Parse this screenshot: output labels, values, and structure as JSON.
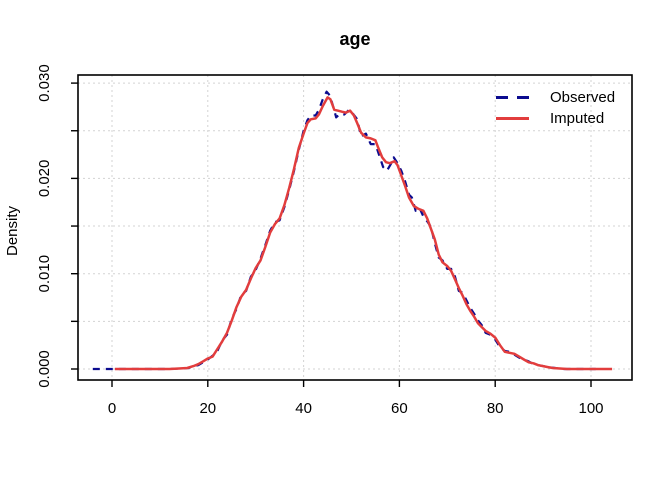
{
  "title": "age",
  "y_axis_label": "Density",
  "colors": {
    "observed": "#0b0b8f",
    "imputed": "#e23d3d",
    "grid": "#d3d3d3",
    "axis": "#000000",
    "background": "#ffffff"
  },
  "legend": {
    "items": [
      {
        "label": "Observed",
        "style": "dashed",
        "color": "#0b0b8f"
      },
      {
        "label": "Imputed",
        "style": "solid",
        "color": "#e23d3d"
      }
    ]
  },
  "chart_data": {
    "type": "line",
    "title": "age",
    "xlabel": "",
    "ylabel": "Density",
    "xlim": [
      -7,
      109
    ],
    "ylim": [
      0,
      0.0315
    ],
    "x_ticks": [
      0,
      20,
      40,
      60,
      80,
      100
    ],
    "y_ticks": [
      0,
      0.005,
      0.01,
      0.015,
      0.02,
      0.025,
      0.03
    ],
    "y_tick_labels": [
      "0.000",
      "0.010",
      "0.020",
      "0.030"
    ],
    "grid": true,
    "grid_style": "dotted",
    "legend_position": "top-right",
    "series": [
      {
        "name": "Observed",
        "color": "#0b0b8f",
        "line_style": "dashed",
        "points": [
          [
            -4,
            0
          ],
          [
            -2.5,
            0
          ],
          [
            -1,
            0
          ],
          [
            0.5,
            0
          ],
          [
            4,
            0
          ],
          [
            8,
            0
          ],
          [
            12,
            0
          ],
          [
            14,
            5e-05
          ],
          [
            16,
            0.0001
          ],
          [
            17,
            0.0003
          ],
          [
            18,
            0.0004
          ],
          [
            19,
            0.0007
          ],
          [
            20,
            0.001
          ],
          [
            21,
            0.0014
          ],
          [
            22,
            0.0019
          ],
          [
            23,
            0.003
          ],
          [
            24,
            0.0036
          ],
          [
            25,
            0.0053
          ],
          [
            26,
            0.0063
          ],
          [
            27,
            0.0078
          ],
          [
            28,
            0.0082
          ],
          [
            29,
            0.0097
          ],
          [
            30,
            0.0104
          ],
          [
            31,
            0.0116
          ],
          [
            32,
            0.013
          ],
          [
            33,
            0.0145
          ],
          [
            34,
            0.0154
          ],
          [
            35,
            0.0156
          ],
          [
            36,
            0.017
          ],
          [
            37,
            0.0188
          ],
          [
            38,
            0.0208
          ],
          [
            39,
            0.023
          ],
          [
            40,
            0.025
          ],
          [
            40.8,
            0.0261
          ],
          [
            41.5,
            0.0266
          ],
          [
            42.5,
            0.0266
          ],
          [
            43.2,
            0.0272
          ],
          [
            44,
            0.0283
          ],
          [
            44.8,
            0.0291
          ],
          [
            45.5,
            0.0287
          ],
          [
            46.2,
            0.0275
          ],
          [
            46.8,
            0.0264
          ],
          [
            47.6,
            0.0268
          ],
          [
            48.5,
            0.0267
          ],
          [
            49.5,
            0.0272
          ],
          [
            50.3,
            0.0268
          ],
          [
            51.2,
            0.0262
          ],
          [
            52,
            0.0244
          ],
          [
            53,
            0.0247
          ],
          [
            54,
            0.0236
          ],
          [
            55,
            0.0236
          ],
          [
            55.8,
            0.0224
          ],
          [
            56.6,
            0.0212
          ],
          [
            57.4,
            0.0208
          ],
          [
            58.2,
            0.0215
          ],
          [
            58.8,
            0.0222
          ],
          [
            59.6,
            0.0216
          ],
          [
            60.4,
            0.0208
          ],
          [
            61.2,
            0.0197
          ],
          [
            62,
            0.0183
          ],
          [
            62.6,
            0.018
          ],
          [
            63.4,
            0.0166
          ],
          [
            64.2,
            0.0169
          ],
          [
            65,
            0.016
          ],
          [
            65.8,
            0.0155
          ],
          [
            66.6,
            0.0149
          ],
          [
            67.4,
            0.0132
          ],
          [
            68.2,
            0.0117
          ],
          [
            69,
            0.0114
          ],
          [
            70,
            0.0105
          ],
          [
            70.8,
            0.0105
          ],
          [
            71.6,
            0.0097
          ],
          [
            72.4,
            0.0082
          ],
          [
            73.2,
            0.008
          ],
          [
            74,
            0.0072
          ],
          [
            74.8,
            0.0064
          ],
          [
            75.6,
            0.0058
          ],
          [
            76.4,
            0.0051
          ],
          [
            77.2,
            0.0046
          ],
          [
            78,
            0.0038
          ],
          [
            79,
            0.0036
          ],
          [
            80,
            0.0031
          ],
          [
            81,
            0.0023
          ],
          [
            82,
            0.0019
          ],
          [
            83,
            0.0018
          ],
          [
            84,
            0.0015
          ],
          [
            85,
            0.0012
          ],
          [
            86,
            0.001
          ],
          [
            87,
            0.0008
          ],
          [
            88,
            0.0005
          ],
          [
            89,
            0.0004
          ],
          [
            90,
            0.0003
          ],
          [
            91,
            0.0002
          ],
          [
            92.5,
            0.0001
          ],
          [
            94,
            0
          ],
          [
            97,
            0
          ],
          [
            101,
            0
          ]
        ]
      },
      {
        "name": "Imputed",
        "color": "#e23d3d",
        "line_style": "solid",
        "points": [
          [
            0.6,
            0
          ],
          [
            4,
            0
          ],
          [
            8,
            0
          ],
          [
            12,
            0
          ],
          [
            14,
            5e-05
          ],
          [
            15.7,
            0.0001
          ],
          [
            17,
            0.0003
          ],
          [
            18,
            0.0005
          ],
          [
            19,
            0.0008
          ],
          [
            20,
            0.0011
          ],
          [
            21,
            0.0013
          ],
          [
            22,
            0.0021
          ],
          [
            23,
            0.0029
          ],
          [
            24,
            0.0038
          ],
          [
            25,
            0.0051
          ],
          [
            26,
            0.0065
          ],
          [
            27,
            0.0076
          ],
          [
            28,
            0.0083
          ],
          [
            29,
            0.0095
          ],
          [
            30,
            0.0106
          ],
          [
            31,
            0.0114
          ],
          [
            32,
            0.0128
          ],
          [
            33,
            0.0143
          ],
          [
            34,
            0.0152
          ],
          [
            35,
            0.0158
          ],
          [
            36,
            0.0172
          ],
          [
            37,
            0.019
          ],
          [
            38,
            0.021
          ],
          [
            39,
            0.0232
          ],
          [
            40,
            0.0247
          ],
          [
            40.8,
            0.0258
          ],
          [
            41.5,
            0.0262
          ],
          [
            42.5,
            0.0263
          ],
          [
            43.2,
            0.0267
          ],
          [
            44,
            0.0276
          ],
          [
            45,
            0.0285
          ],
          [
            45.6,
            0.0283
          ],
          [
            46.4,
            0.0272
          ],
          [
            47.2,
            0.0271
          ],
          [
            48,
            0.027
          ],
          [
            48.8,
            0.0269
          ],
          [
            49.7,
            0.0271
          ],
          [
            50.5,
            0.0266
          ],
          [
            51.2,
            0.0258
          ],
          [
            52,
            0.0248
          ],
          [
            53,
            0.0243
          ],
          [
            54,
            0.0242
          ],
          [
            55,
            0.024
          ],
          [
            55.6,
            0.0232
          ],
          [
            56.4,
            0.0222
          ],
          [
            57.2,
            0.0217
          ],
          [
            58,
            0.0216
          ],
          [
            59,
            0.0218
          ],
          [
            59.6,
            0.0214
          ],
          [
            60.4,
            0.0203
          ],
          [
            61.2,
            0.0192
          ],
          [
            62,
            0.018
          ],
          [
            63,
            0.0171
          ],
          [
            64,
            0.0168
          ],
          [
            65,
            0.0166
          ],
          [
            65.8,
            0.0158
          ],
          [
            66.6,
            0.0147
          ],
          [
            67.4,
            0.0136
          ],
          [
            68.2,
            0.012
          ],
          [
            69,
            0.0112
          ],
          [
            70,
            0.0108
          ],
          [
            70.8,
            0.0103
          ],
          [
            71.6,
            0.0094
          ],
          [
            72.4,
            0.0085
          ],
          [
            73.2,
            0.0077
          ],
          [
            74,
            0.0068
          ],
          [
            74.8,
            0.0061
          ],
          [
            75.6,
            0.0055
          ],
          [
            76.4,
            0.0048
          ],
          [
            77.2,
            0.0044
          ],
          [
            78,
            0.004
          ],
          [
            79,
            0.0037
          ],
          [
            80,
            0.0033
          ],
          [
            81,
            0.0025
          ],
          [
            82,
            0.0018
          ],
          [
            83,
            0.0017
          ],
          [
            84,
            0.0016
          ],
          [
            85,
            0.0013
          ],
          [
            86,
            0.001
          ],
          [
            87,
            0.0007
          ],
          [
            88,
            0.0006
          ],
          [
            89,
            0.0004
          ],
          [
            90,
            0.0003
          ],
          [
            91,
            0.0002
          ],
          [
            92,
            0.0001
          ],
          [
            93.5,
            5e-05
          ],
          [
            95,
            0
          ],
          [
            98,
            0
          ],
          [
            101,
            0
          ],
          [
            104.4,
            0
          ]
        ]
      }
    ]
  }
}
